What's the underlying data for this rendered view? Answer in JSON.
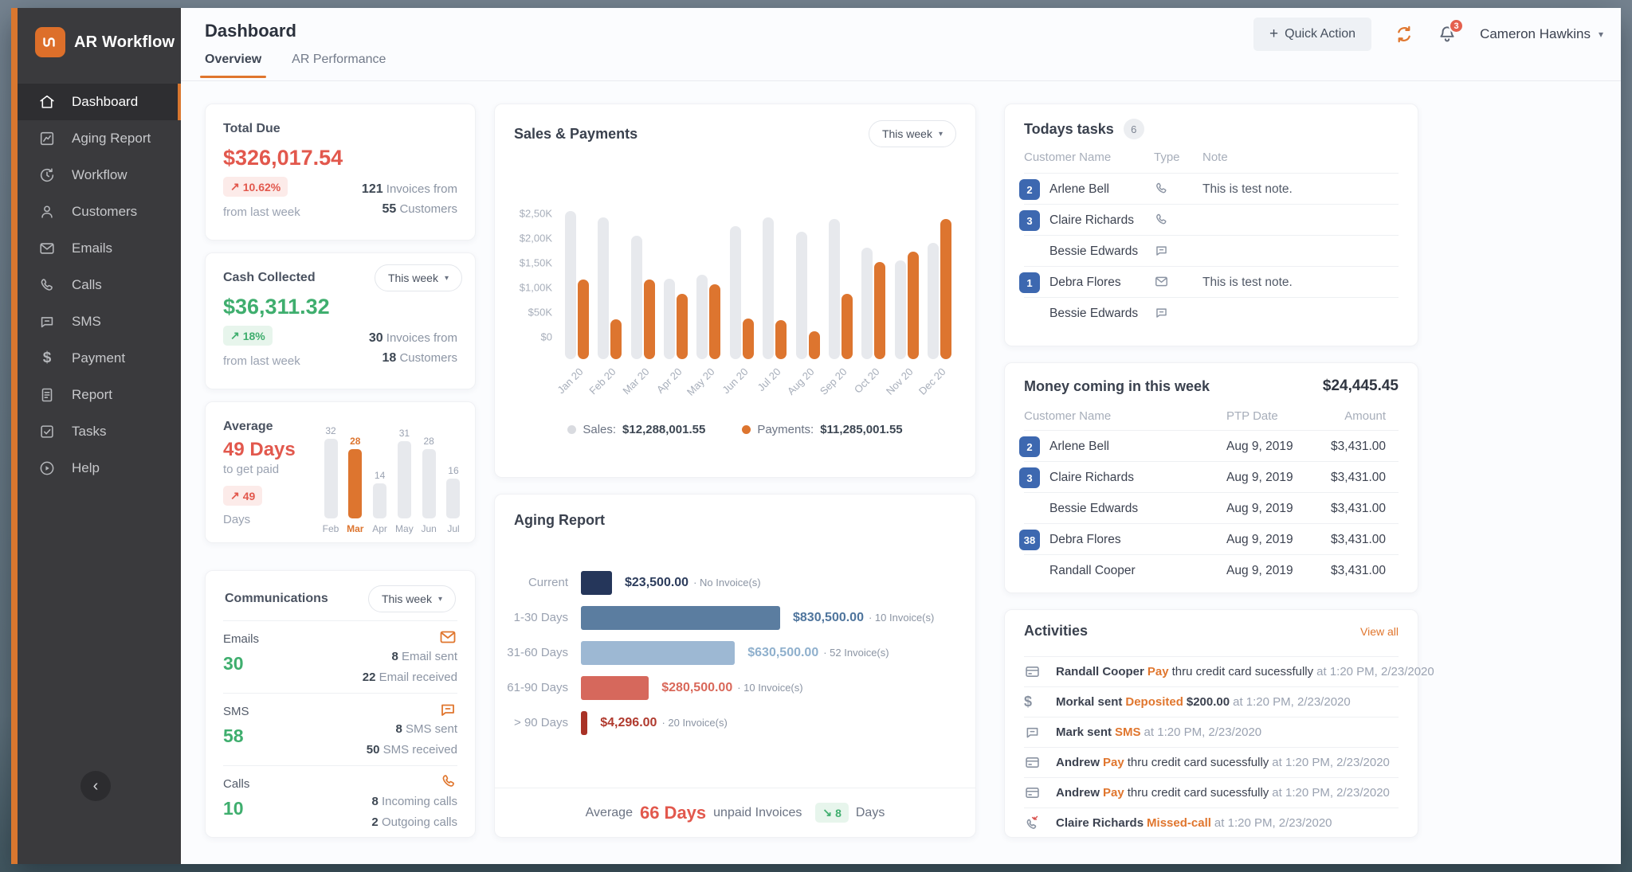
{
  "colors": {
    "accent_orange": "#dd752f",
    "red": "#e2584d",
    "green": "#3fae6e",
    "badge_blue": "#3d68b0",
    "sidebar_bg": "#3a3a3d",
    "bar_gray": "#e7e9ed",
    "navy": "#25365a",
    "steel_blue": "#5b7da0",
    "light_blue": "#9db8d3",
    "salmon": "#d6685c",
    "dark_red": "#a93226"
  },
  "icons": {
    "trend_up": "↗",
    "trend_down": "↘",
    "caret": "▾",
    "plus": "+",
    "chevron_left": "‹"
  },
  "sidebar": {
    "brand": "AR Workflow",
    "items": [
      {
        "label": "Dashboard"
      },
      {
        "label": "Aging Report"
      },
      {
        "label": "Workflow"
      },
      {
        "label": "Customers"
      },
      {
        "label": "Emails"
      },
      {
        "label": "Calls"
      },
      {
        "label": "SMS"
      },
      {
        "label": "Payment"
      },
      {
        "label": "Report"
      },
      {
        "label": "Tasks"
      },
      {
        "label": "Help"
      }
    ]
  },
  "header": {
    "page_title": "Dashboard",
    "quick_action": "Quick Action",
    "notification_count": "3",
    "user_name": "Cameron Hawkins",
    "tabs": [
      {
        "label": "Overview"
      },
      {
        "label": "AR Performance"
      }
    ]
  },
  "cards": {
    "total_due": {
      "title": "Total Due",
      "value": "$326,017.54",
      "delta": "10.62%",
      "caption": "from last week",
      "line1_num": "121",
      "line1_label": "Invoices from",
      "line2_num": "55",
      "line2_label": "Customers"
    },
    "cash": {
      "title": "Cash Collected",
      "period": "This week",
      "value": "$36,311.32",
      "delta": "18%",
      "caption": "from last week",
      "line1_num": "30",
      "line1_label": "Invoices from",
      "line2_num": "18",
      "line2_label": "Customers"
    },
    "average": {
      "title": "Average",
      "value": "49 Days",
      "caption": "to get paid",
      "delta": "49",
      "delta_caption": "Days"
    },
    "communications": {
      "title": "Communications",
      "period": "This week",
      "rows": [
        {
          "label": "Emails",
          "count": "30",
          "line1_num": "8",
          "line1_label": "Email sent",
          "line2_num": "22",
          "line2_label": "Email received"
        },
        {
          "label": "SMS",
          "count": "58",
          "line1_num": "8",
          "line1_label": "SMS sent",
          "line2_num": "50",
          "line2_label": "SMS received"
        },
        {
          "label": "Calls",
          "count": "10",
          "line1_num": "8",
          "line1_label": "Incoming calls",
          "line2_num": "2",
          "line2_label": "Outgoing calls"
        }
      ]
    }
  },
  "sales": {
    "title": "Sales & Payments",
    "period": "This week",
    "legend": [
      {
        "label": "Sales:",
        "value": "$12,288,001.55"
      },
      {
        "label": "Payments:",
        "value": "$11,285,001.55"
      }
    ]
  },
  "aging": {
    "title": "Aging Report",
    "rows": [
      {
        "label": "Current",
        "amount": "$23,500.00",
        "invoices": "· No Invoice(s)",
        "color": "#2c3c5c"
      },
      {
        "label": "1-30 Days",
        "amount": "$830,500.00",
        "invoices": "· 10 Invoice(s)",
        "color": "#4f759d"
      },
      {
        "label": "31-60 Days",
        "amount": "$630,500.00",
        "invoices": "· 52 Invoice(s)",
        "color": "#8fb0cd"
      },
      {
        "label": "61-90 Days",
        "amount": "$280,500.00",
        "invoices": "· 10 Invoice(s)",
        "color": "#d9685a"
      },
      {
        "label": "> 90 Days",
        "amount": "$4,296.00",
        "invoices": "· 20 Invoice(s)",
        "color": "#b03a2e"
      }
    ],
    "footer": {
      "prefix": "Average",
      "value": "66 Days",
      "suffix": "unpaid Invoices",
      "delta": "8",
      "unit": "Days"
    }
  },
  "tasks": {
    "title": "Todays tasks",
    "count": "6",
    "columns": [
      "Customer Name",
      "Type",
      "Note"
    ],
    "rows": [
      {
        "badge": "2",
        "name": "Arlene Bell",
        "note": "This is test note."
      },
      {
        "badge": "3",
        "name": "Claire Richards",
        "note": ""
      },
      {
        "badge": "",
        "name": "Bessie Edwards",
        "note": ""
      },
      {
        "badge": "1",
        "name": "Debra Flores",
        "note": "This is test note."
      },
      {
        "badge": "",
        "name": "Bessie Edwards",
        "note": ""
      }
    ]
  },
  "money": {
    "title": "Money coming in this week",
    "total": "$24,445.45",
    "columns": [
      "Customer Name",
      "PTP Date",
      "Amount"
    ],
    "rows": [
      {
        "badge": "2",
        "name": "Arlene Bell",
        "date": "Aug 9, 2019",
        "amount": "$3,431.00"
      },
      {
        "badge": "3",
        "name": "Claire Richards",
        "date": "Aug 9, 2019",
        "amount": "$3,431.00"
      },
      {
        "badge": "",
        "name": "Bessie Edwards",
        "date": "Aug 9, 2019",
        "amount": "$3,431.00"
      },
      {
        "badge": "38",
        "name": "Debra Flores",
        "date": "Aug 9, 2019",
        "amount": "$3,431.00"
      },
      {
        "badge": "",
        "name": "Randall Cooper",
        "date": "Aug 9, 2019",
        "amount": "$3,431.00"
      }
    ]
  },
  "activities": {
    "title": "Activities",
    "view_all": "View all",
    "rows": [
      {
        "name": "Randall Cooper",
        "action": "Pay",
        "amount": "",
        "detail": "thru credit card sucessfully",
        "time": "at 1:20 PM, 2/23/2020"
      },
      {
        "name": "Morkal sent",
        "action": "Deposited",
        "amount": "$200.00",
        "detail": "",
        "time": "at 1:20 PM, 2/23/2020"
      },
      {
        "name": "Mark sent",
        "action": "SMS",
        "amount": "",
        "detail": "",
        "time": "at 1:20 PM, 2/23/2020"
      },
      {
        "name": "Andrew",
        "action": "Pay",
        "amount": "",
        "detail": "thru credit card sucessfully",
        "time": "at 1:20 PM, 2/23/2020"
      },
      {
        "name": "Andrew",
        "action": "Pay",
        "amount": "",
        "detail": "thru credit card sucessfully",
        "time": "at 1:20 PM, 2/23/2020"
      },
      {
        "name": "Claire Richards",
        "action": "Missed-call",
        "amount": "",
        "detail": "",
        "time": "at 1:20 PM, 2/23/2020"
      }
    ]
  },
  "chart_data": [
    {
      "type": "bar",
      "title": "Sales & Payments",
      "categories": [
        "Jan 20",
        "Feb 20",
        "Mar 20",
        "Apr 20",
        "May 20",
        "Jun 20",
        "Jul 20",
        "Aug 20",
        "Sep 20",
        "Oct 20",
        "Nov 20",
        "Dec 20"
      ],
      "series": [
        {
          "name": "Sales",
          "color": "#e7e9ed",
          "values": [
            2.55,
            2.42,
            2.05,
            1.17,
            1.26,
            2.24,
            2.42,
            2.13,
            2.39,
            1.81,
            1.55,
            1.9
          ]
        },
        {
          "name": "Payments",
          "color": "#dd752f",
          "values": [
            1.16,
            0.35,
            1.16,
            0.87,
            1.07,
            0.37,
            0.34,
            0.12,
            0.87,
            1.51,
            1.72,
            2.39
          ]
        }
      ],
      "ylabel": "",
      "xlabel": "",
      "ylim": [
        0,
        2.5
      ],
      "yticks": [
        "$0",
        "$50K",
        "$1,00K",
        "$1,50K",
        "$2,00K",
        "$2,50K"
      ],
      "legend_position": "bottom",
      "series_totals": {
        "Sales": "$12,288,001.55",
        "Payments": "$11,285,001.55"
      }
    },
    {
      "type": "bar",
      "title": "Average days to get paid (monthly)",
      "categories": [
        "Feb",
        "Mar",
        "Apr",
        "May",
        "Jun",
        "Jul"
      ],
      "values": [
        32,
        28,
        14,
        31,
        28,
        16
      ],
      "highlight_index": 1,
      "bar_color": "#e7e9ed",
      "highlight_color": "#dd752f",
      "ylim": [
        0,
        32
      ]
    },
    {
      "type": "bar",
      "orientation": "horizontal",
      "title": "Aging Report",
      "categories": [
        "Current",
        "1-30 Days",
        "31-60 Days",
        "61-90 Days",
        "> 90 Days"
      ],
      "values": [
        23500,
        830500,
        630500,
        280500,
        4296
      ],
      "invoice_counts": [
        "No",
        "10",
        "52",
        "10",
        "20"
      ],
      "colors": [
        "#25365a",
        "#5b7da0",
        "#9db8d3",
        "#d6685c",
        "#a93226"
      ],
      "bar_ratio": [
        0.156,
        1.0,
        0.773,
        0.341,
        0.033
      ],
      "annotation": "Average 66 Days unpaid Invoices, down 8 Days"
    }
  ]
}
